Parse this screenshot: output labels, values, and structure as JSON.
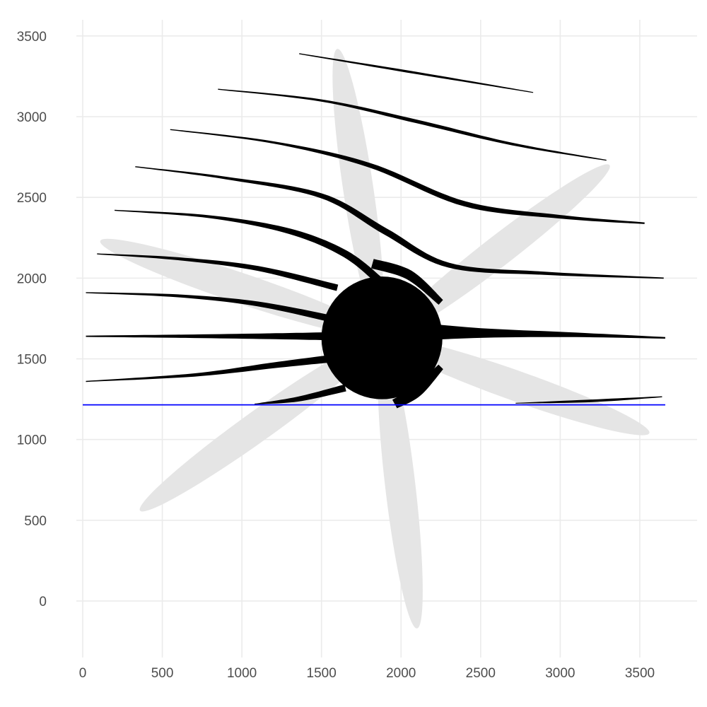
{
  "chart_data": {
    "type": "other",
    "title": "",
    "xlabel": "",
    "ylabel": "",
    "xlim": [
      -40,
      3860
    ],
    "ylim": [
      -350,
      3600
    ],
    "x_ticks": [
      0,
      500,
      1000,
      1500,
      2000,
      2500,
      3000,
      3500
    ],
    "y_ticks": [
      0,
      500,
      1000,
      1500,
      2000,
      2500,
      3000,
      3500
    ],
    "x_tick_labels": [
      "0",
      "500",
      "1000",
      "1500",
      "2000",
      "2500",
      "3000",
      "3500"
    ],
    "y_tick_labels": [
      "0",
      "500",
      "1000",
      "1500",
      "2000",
      "2500",
      "3000",
      "3500"
    ],
    "grid": true,
    "legend": "none",
    "colors": {
      "background": "#ffffff",
      "grid": "#ebebeb",
      "petal": "#e5e5e5",
      "stream": "#000000",
      "hline": "#0000ff"
    },
    "hline_y": 1215,
    "hline_x_range": [
      0,
      3660
    ],
    "center_circle": {
      "x": 1880,
      "y": 1630,
      "r": 380
    },
    "petals": [
      {
        "x1": 1600,
        "y1": 3420,
        "x2": 1860,
        "y2": 1700,
        "width": 190
      },
      {
        "x1": 3310,
        "y1": 2700,
        "x2": 1920,
        "y2": 1640,
        "width": 190
      },
      {
        "x1": 3560,
        "y1": 1040,
        "x2": 1900,
        "y2": 1620,
        "width": 190
      },
      {
        "x1": 2100,
        "y1": -170,
        "x2": 1890,
        "y2": 1600,
        "width": 190
      },
      {
        "x1": 360,
        "y1": 560,
        "x2": 1860,
        "y2": 1620,
        "width": 190
      },
      {
        "x1": 110,
        "y1": 2230,
        "x2": 1860,
        "y2": 1650,
        "width": 190
      }
    ],
    "streamlines": [
      {
        "points": [
          [
            1360,
            3390
          ],
          [
            2100,
            3270
          ],
          [
            2830,
            3150
          ]
        ],
        "widths": [
          6,
          14,
          5
        ]
      },
      {
        "points": [
          [
            850,
            3170
          ],
          [
            1500,
            3100
          ],
          [
            2100,
            2970
          ],
          [
            2700,
            2830
          ],
          [
            3290,
            2730
          ]
        ],
        "widths": [
          6,
          14,
          22,
          16,
          6
        ]
      },
      {
        "points": [
          [
            550,
            2920
          ],
          [
            1200,
            2840
          ],
          [
            1800,
            2700
          ],
          [
            2400,
            2460
          ],
          [
            3000,
            2380
          ],
          [
            3530,
            2340
          ]
        ],
        "widths": [
          6,
          14,
          28,
          32,
          22,
          10
        ]
      },
      {
        "points": [
          [
            330,
            2690
          ],
          [
            900,
            2620
          ],
          [
            1500,
            2510
          ],
          [
            1900,
            2290
          ],
          [
            2300,
            2080
          ],
          [
            2900,
            2030
          ],
          [
            3650,
            2000
          ]
        ],
        "widths": [
          6,
          16,
          30,
          40,
          30,
          20,
          8
        ]
      },
      {
        "points": [
          [
            200,
            2420
          ],
          [
            800,
            2380
          ],
          [
            1300,
            2290
          ],
          [
            1650,
            2150
          ],
          [
            1880,
            1970
          ]
        ],
        "widths": [
          6,
          18,
          34,
          44,
          50
        ]
      },
      {
        "points": [
          [
            90,
            2150
          ],
          [
            600,
            2120
          ],
          [
            1100,
            2060
          ],
          [
            1600,
            1940
          ]
        ],
        "widths": [
          6,
          18,
          30,
          40
        ]
      },
      {
        "points": [
          [
            20,
            1910
          ],
          [
            600,
            1890
          ],
          [
            1100,
            1840
          ],
          [
            1600,
            1740
          ]
        ],
        "widths": [
          6,
          18,
          30,
          44
        ]
      },
      {
        "points": [
          [
            20,
            1640
          ],
          [
            700,
            1640
          ],
          [
            1300,
            1640
          ],
          [
            1700,
            1640
          ]
        ],
        "widths": [
          8,
          22,
          40,
          56
        ]
      },
      {
        "points": [
          [
            20,
            1360
          ],
          [
            700,
            1400
          ],
          [
            1200,
            1460
          ],
          [
            1550,
            1500
          ]
        ],
        "widths": [
          6,
          20,
          36,
          46
        ]
      },
      {
        "points": [
          [
            1080,
            1220
          ],
          [
            1350,
            1250
          ],
          [
            1650,
            1320
          ]
        ],
        "widths": [
          4,
          30,
          44
        ]
      },
      {
        "points": [
          [
            2040,
            1670
          ],
          [
            2500,
            1660
          ],
          [
            3050,
            1650
          ],
          [
            3660,
            1630
          ]
        ],
        "widths": [
          120,
          60,
          30,
          10
        ]
      },
      {
        "points": [
          [
            2250,
            1850
          ],
          [
            2050,
            2020
          ],
          [
            1820,
            2090
          ]
        ],
        "widths": [
          40,
          60,
          60
        ]
      },
      {
        "points": [
          [
            2250,
            1450
          ],
          [
            2100,
            1300
          ],
          [
            1960,
            1220
          ]
        ],
        "widths": [
          40,
          70,
          60
        ]
      },
      {
        "points": [
          [
            2720,
            1225
          ],
          [
            3200,
            1240
          ],
          [
            3640,
            1265
          ]
        ],
        "widths": [
          4,
          16,
          6
        ]
      }
    ]
  }
}
